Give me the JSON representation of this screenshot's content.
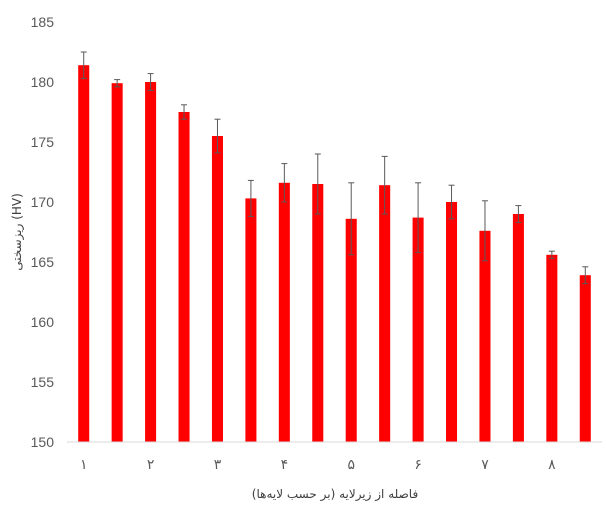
{
  "chart_data": {
    "type": "bar",
    "title": "",
    "xlabel": "فاصله از زیرلایه (بر حسب لایه‌ها)",
    "ylabel": "ریزسختی (HV)",
    "ylim": [
      150,
      185
    ],
    "yticks": [
      "150",
      "155",
      "160",
      "165",
      "170",
      "175",
      "180",
      "185"
    ],
    "x_tick_labels": [
      "۱",
      "۲",
      "۳",
      "۴",
      "۵",
      "۶",
      "۷",
      "۸"
    ],
    "grid": false,
    "legend": "none",
    "series": [
      {
        "values": [
          181.4,
          179.9,
          180.0,
          177.5,
          175.5,
          170.3,
          171.6,
          171.5,
          168.6,
          171.4,
          168.7,
          170.0,
          167.6,
          169.0,
          165.6,
          163.9
        ],
        "error": [
          1.1,
          0.3,
          0.7,
          0.6,
          1.4,
          1.5,
          1.6,
          2.5,
          3.0,
          2.4,
          2.9,
          1.4,
          2.5,
          0.7,
          0.3,
          0.7
        ]
      }
    ],
    "colors": {
      "bar": "#ff0000",
      "error_bar": "#595959",
      "axis": "#d9d9d9",
      "text": "#595959"
    }
  }
}
